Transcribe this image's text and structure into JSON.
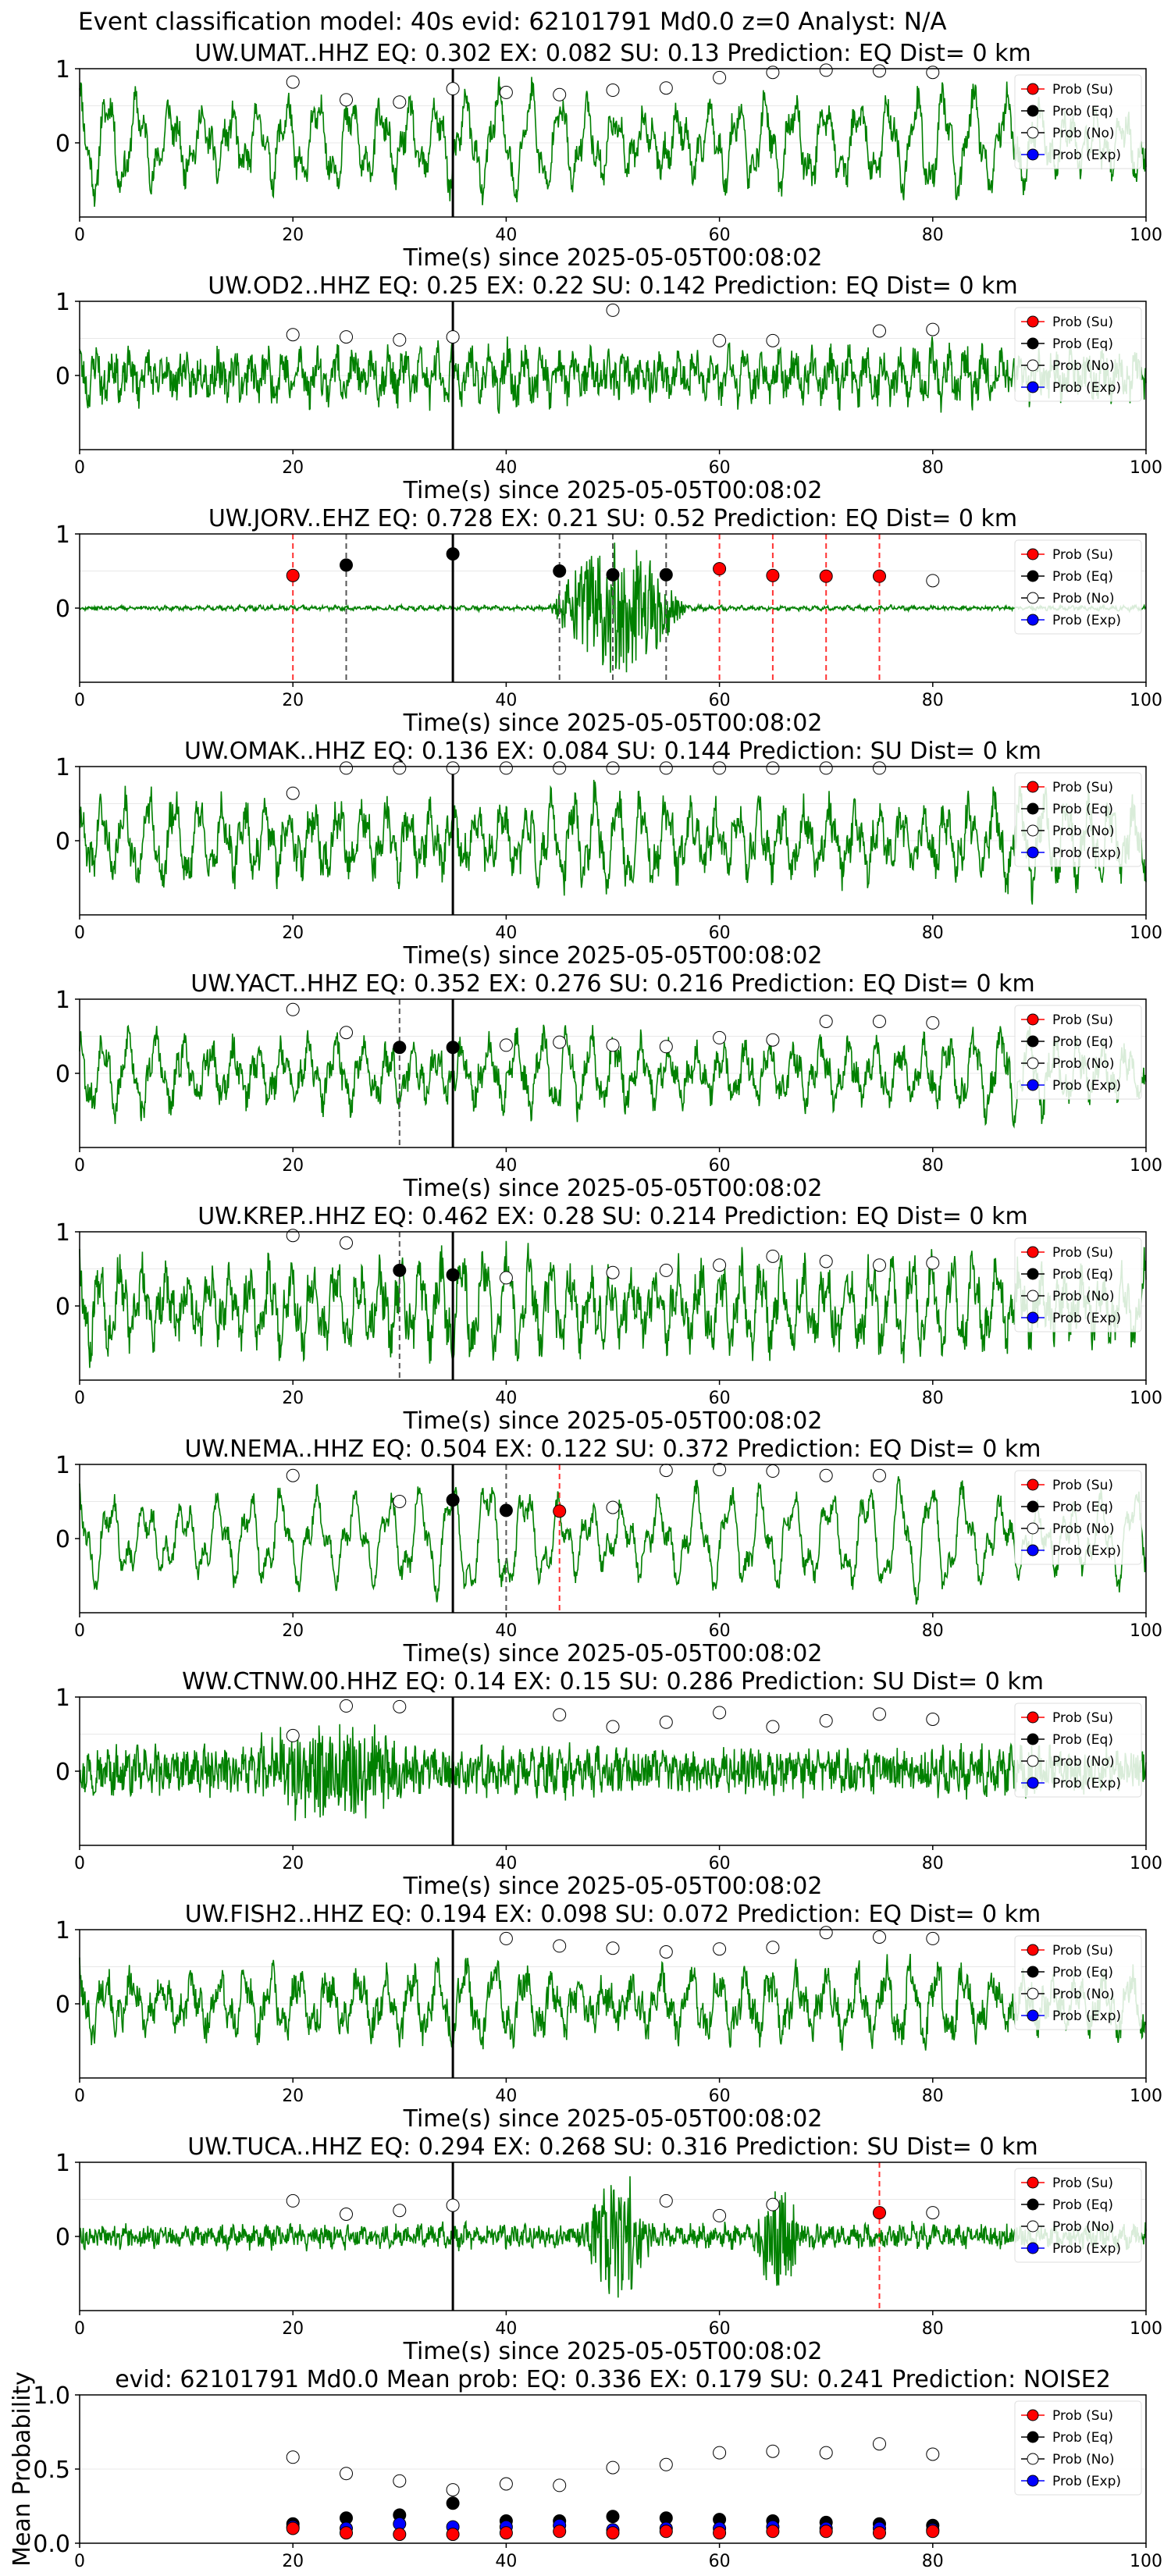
{
  "suptitle": "Event classification model: 40s evid: 62101791 Md0.0 z=0 Analyst: N/A",
  "legend": [
    "Prob (Su)",
    "Prob (Eq)",
    "Prob (No)",
    "Prob (Exp)"
  ],
  "colors": {
    "su": "#ff0000",
    "eq": "#000000",
    "no": "#ffffff",
    "exp": "#0000ff",
    "wave": "#008000",
    "vline_eq": "#555555",
    "vline_su": "#ff3333"
  },
  "chart_data": [
    {
      "type": "line",
      "title": "UW.UMAT..HHZ   EQ: 0.302  EX: 0.082  SU: 0.13   Prediction: EQ    Dist= 0 km",
      "xlabel": "Time(s) since 2025-05-05T00:08:02",
      "xlim": [
        0,
        100
      ],
      "ylim": [
        -1,
        1
      ],
      "xticks": [
        "0",
        "20",
        "40",
        "60",
        "80",
        "100"
      ],
      "yticks": [
        "0",
        "1"
      ],
      "wave": {
        "amp": 0.55,
        "period": 2.8,
        "noise": 0.18,
        "seed": 11
      },
      "pick_time": 35,
      "points": [
        {
          "t": 20,
          "p": 0.82,
          "cls": "no"
        },
        {
          "t": 25,
          "p": 0.58,
          "cls": "no"
        },
        {
          "t": 30,
          "p": 0.55,
          "cls": "no"
        },
        {
          "t": 35,
          "p": 0.73,
          "cls": "no"
        },
        {
          "t": 40,
          "p": 0.68,
          "cls": "no"
        },
        {
          "t": 45,
          "p": 0.65,
          "cls": "no"
        },
        {
          "t": 50,
          "p": 0.71,
          "cls": "no"
        },
        {
          "t": 55,
          "p": 0.74,
          "cls": "no"
        },
        {
          "t": 60,
          "p": 0.88,
          "cls": "no"
        },
        {
          "t": 65,
          "p": 0.95,
          "cls": "no"
        },
        {
          "t": 70,
          "p": 0.98,
          "cls": "no"
        },
        {
          "t": 75,
          "p": 0.97,
          "cls": "no"
        },
        {
          "t": 80,
          "p": 0.95,
          "cls": "no"
        }
      ],
      "vlines": []
    },
    {
      "type": "line",
      "title": "UW.OD2..HHZ   EQ: 0.25  EX: 0.22  SU: 0.142   Prediction: EQ    Dist= 0 km",
      "xlabel": "Time(s) since 2025-05-05T00:08:02",
      "xlim": [
        0,
        100
      ],
      "ylim": [
        -1,
        1
      ],
      "xticks": [
        "0",
        "20",
        "40",
        "60",
        "80",
        "100"
      ],
      "yticks": [
        "0",
        "1"
      ],
      "wave": {
        "amp": 0.25,
        "period": 1.6,
        "noise": 0.22,
        "seed": 23
      },
      "pick_time": 35,
      "points": [
        {
          "t": 20,
          "p": 0.55,
          "cls": "no"
        },
        {
          "t": 25,
          "p": 0.52,
          "cls": "no"
        },
        {
          "t": 30,
          "p": 0.48,
          "cls": "no"
        },
        {
          "t": 35,
          "p": 0.52,
          "cls": "no"
        },
        {
          "t": 50,
          "p": 0.88,
          "cls": "no"
        },
        {
          "t": 60,
          "p": 0.47,
          "cls": "no"
        },
        {
          "t": 65,
          "p": 0.47,
          "cls": "no"
        },
        {
          "t": 75,
          "p": 0.6,
          "cls": "no"
        },
        {
          "t": 80,
          "p": 0.62,
          "cls": "no"
        }
      ],
      "vlines": []
    },
    {
      "type": "line",
      "title": "UW.JORV..EHZ   EQ: 0.728  EX: 0.21  SU: 0.52   Prediction: EQ    Dist= 0 km",
      "xlabel": "Time(s) since 2025-05-05T00:08:02",
      "xlim": [
        0,
        100
      ],
      "ylim": [
        -1,
        1
      ],
      "xticks": [
        "0",
        "20",
        "40",
        "60",
        "80",
        "100"
      ],
      "yticks": [
        "0",
        "1"
      ],
      "wave": {
        "amp": 0.02,
        "period": 1.0,
        "noise": 0.02,
        "seed": 37,
        "burst": [
          44,
          57,
          0.9
        ]
      },
      "pick_time": 35,
      "points": [
        {
          "t": 20,
          "p": 0.44,
          "cls": "su"
        },
        {
          "t": 25,
          "p": 0.58,
          "cls": "eq"
        },
        {
          "t": 35,
          "p": 0.73,
          "cls": "eq"
        },
        {
          "t": 45,
          "p": 0.5,
          "cls": "eq"
        },
        {
          "t": 50,
          "p": 0.45,
          "cls": "eq"
        },
        {
          "t": 55,
          "p": 0.45,
          "cls": "eq"
        },
        {
          "t": 60,
          "p": 0.53,
          "cls": "su"
        },
        {
          "t": 65,
          "p": 0.44,
          "cls": "su"
        },
        {
          "t": 70,
          "p": 0.43,
          "cls": "su"
        },
        {
          "t": 75,
          "p": 0.43,
          "cls": "su"
        },
        {
          "t": 80,
          "p": 0.37,
          "cls": "no"
        }
      ],
      "vlines": [
        {
          "t": 20,
          "cls": "su"
        },
        {
          "t": 25,
          "cls": "eq"
        },
        {
          "t": 45,
          "cls": "eq"
        },
        {
          "t": 50,
          "cls": "eq"
        },
        {
          "t": 55,
          "cls": "eq"
        },
        {
          "t": 60,
          "cls": "su"
        },
        {
          "t": 65,
          "cls": "su"
        },
        {
          "t": 70,
          "cls": "su"
        },
        {
          "t": 75,
          "cls": "su"
        }
      ]
    },
    {
      "type": "line",
      "title": "UW.OMAK..HHZ   EQ: 0.136  EX: 0.084  SU: 0.144   Prediction: SU    Dist= 0 km",
      "xlabel": "Time(s) since 2025-05-05T00:08:02",
      "xlim": [
        0,
        100
      ],
      "ylim": [
        -1,
        1
      ],
      "xticks": [
        "0",
        "20",
        "40",
        "60",
        "80",
        "100"
      ],
      "yticks": [
        "0",
        "1"
      ],
      "wave": {
        "amp": 0.45,
        "period": 2.2,
        "noise": 0.22,
        "seed": 41
      },
      "pick_time": 35,
      "points": [
        {
          "t": 20,
          "p": 0.64,
          "cls": "no"
        },
        {
          "t": 25,
          "p": 0.98,
          "cls": "no"
        },
        {
          "t": 30,
          "p": 0.98,
          "cls": "no"
        },
        {
          "t": 35,
          "p": 0.98,
          "cls": "no"
        },
        {
          "t": 40,
          "p": 0.98,
          "cls": "no"
        },
        {
          "t": 45,
          "p": 0.98,
          "cls": "no"
        },
        {
          "t": 50,
          "p": 0.98,
          "cls": "no"
        },
        {
          "t": 55,
          "p": 0.98,
          "cls": "no"
        },
        {
          "t": 60,
          "p": 0.98,
          "cls": "no"
        },
        {
          "t": 65,
          "p": 0.98,
          "cls": "no"
        },
        {
          "t": 70,
          "p": 0.98,
          "cls": "no"
        },
        {
          "t": 75,
          "p": 0.98,
          "cls": "no"
        }
      ],
      "vlines": []
    },
    {
      "type": "line",
      "title": "UW.YACT..HHZ   EQ: 0.352  EX: 0.276  SU: 0.216   Prediction: EQ    Dist= 0 km",
      "xlabel": "Time(s) since 2025-05-05T00:08:02",
      "xlim": [
        0,
        100
      ],
      "ylim": [
        -1,
        1
      ],
      "xticks": [
        "0",
        "20",
        "40",
        "60",
        "80",
        "100"
      ],
      "yticks": [
        "0",
        "1"
      ],
      "wave": {
        "amp": 0.4,
        "period": 2.4,
        "noise": 0.18,
        "seed": 53
      },
      "pick_time": 35,
      "points": [
        {
          "t": 20,
          "p": 0.86,
          "cls": "no"
        },
        {
          "t": 25,
          "p": 0.55,
          "cls": "no"
        },
        {
          "t": 30,
          "p": 0.35,
          "cls": "eq"
        },
        {
          "t": 35,
          "p": 0.35,
          "cls": "eq"
        },
        {
          "t": 40,
          "p": 0.38,
          "cls": "no"
        },
        {
          "t": 45,
          "p": 0.42,
          "cls": "no"
        },
        {
          "t": 50,
          "p": 0.38,
          "cls": "no"
        },
        {
          "t": 55,
          "p": 0.36,
          "cls": "no"
        },
        {
          "t": 60,
          "p": 0.48,
          "cls": "no"
        },
        {
          "t": 65,
          "p": 0.45,
          "cls": "no"
        },
        {
          "t": 70,
          "p": 0.7,
          "cls": "no"
        },
        {
          "t": 75,
          "p": 0.7,
          "cls": "no"
        },
        {
          "t": 80,
          "p": 0.68,
          "cls": "no"
        }
      ],
      "vlines": [
        {
          "t": 30,
          "cls": "eq"
        }
      ]
    },
    {
      "type": "line",
      "title": "UW.KREP..HHZ   EQ: 0.462  EX: 0.28  SU: 0.214   Prediction: EQ    Dist= 0 km",
      "xlabel": "Time(s) since 2025-05-05T00:08:02",
      "xlim": [
        0,
        100
      ],
      "ylim": [
        -1,
        1
      ],
      "xticks": [
        "0",
        "20",
        "40",
        "60",
        "80",
        "100"
      ],
      "yticks": [
        "0",
        "1"
      ],
      "wave": {
        "amp": 0.5,
        "period": 2.0,
        "noise": 0.25,
        "seed": 67
      },
      "pick_time": 35,
      "points": [
        {
          "t": 20,
          "p": 0.95,
          "cls": "no"
        },
        {
          "t": 25,
          "p": 0.85,
          "cls": "no"
        },
        {
          "t": 30,
          "p": 0.48,
          "cls": "eq"
        },
        {
          "t": 35,
          "p": 0.42,
          "cls": "eq"
        },
        {
          "t": 40,
          "p": 0.38,
          "cls": "no"
        },
        {
          "t": 50,
          "p": 0.45,
          "cls": "no"
        },
        {
          "t": 55,
          "p": 0.48,
          "cls": "no"
        },
        {
          "t": 60,
          "p": 0.55,
          "cls": "no"
        },
        {
          "t": 65,
          "p": 0.67,
          "cls": "no"
        },
        {
          "t": 70,
          "p": 0.6,
          "cls": "no"
        },
        {
          "t": 75,
          "p": 0.55,
          "cls": "no"
        },
        {
          "t": 80,
          "p": 0.58,
          "cls": "no"
        }
      ],
      "vlines": [
        {
          "t": 30,
          "cls": "eq"
        }
      ]
    },
    {
      "type": "line",
      "title": "UW.NEMA..HHZ   EQ: 0.504  EX: 0.122  SU: 0.372   Prediction: EQ    Dist= 0 km",
      "xlabel": "Time(s) since 2025-05-05T00:08:02",
      "xlim": [
        0,
        100
      ],
      "ylim": [
        -1,
        1
      ],
      "xticks": [
        "0",
        "20",
        "40",
        "60",
        "80",
        "100"
      ],
      "yticks": [
        "0",
        "1"
      ],
      "wave": {
        "amp": 0.6,
        "period": 3.2,
        "noise": 0.12,
        "seed": 79
      },
      "pick_time": 35,
      "points": [
        {
          "t": 20,
          "p": 0.85,
          "cls": "no"
        },
        {
          "t": 30,
          "p": 0.5,
          "cls": "no"
        },
        {
          "t": 35,
          "p": 0.52,
          "cls": "eq"
        },
        {
          "t": 40,
          "p": 0.38,
          "cls": "eq"
        },
        {
          "t": 45,
          "p": 0.37,
          "cls": "su"
        },
        {
          "t": 50,
          "p": 0.42,
          "cls": "no"
        },
        {
          "t": 55,
          "p": 0.92,
          "cls": "no"
        },
        {
          "t": 60,
          "p": 0.93,
          "cls": "no"
        },
        {
          "t": 65,
          "p": 0.91,
          "cls": "no"
        },
        {
          "t": 70,
          "p": 0.85,
          "cls": "no"
        },
        {
          "t": 75,
          "p": 0.85,
          "cls": "no"
        }
      ],
      "vlines": [
        {
          "t": 40,
          "cls": "eq"
        },
        {
          "t": 45,
          "cls": "su"
        }
      ]
    },
    {
      "type": "line",
      "title": "WW.CTNW.00.HHZ   EQ: 0.14  EX: 0.15  SU: 0.286   Prediction: SU    Dist= 0 km",
      "xlabel": "Time(s) since 2025-05-05T00:08:02",
      "xlim": [
        0,
        100
      ],
      "ylim": [
        -1,
        1
      ],
      "xticks": [
        "0",
        "20",
        "40",
        "60",
        "80",
        "100"
      ],
      "yticks": [
        "0",
        "1"
      ],
      "wave": {
        "amp": 0.12,
        "period": 0.9,
        "noise": 0.25,
        "seed": 97,
        "burst": [
          15,
          33,
          0.55
        ]
      },
      "pick_time": 35,
      "points": [
        {
          "t": 20,
          "p": 0.48,
          "cls": "no"
        },
        {
          "t": 25,
          "p": 0.88,
          "cls": "no"
        },
        {
          "t": 30,
          "p": 0.87,
          "cls": "no"
        },
        {
          "t": 45,
          "p": 0.76,
          "cls": "no"
        },
        {
          "t": 50,
          "p": 0.6,
          "cls": "no"
        },
        {
          "t": 55,
          "p": 0.66,
          "cls": "no"
        },
        {
          "t": 60,
          "p": 0.79,
          "cls": "no"
        },
        {
          "t": 65,
          "p": 0.6,
          "cls": "no"
        },
        {
          "t": 70,
          "p": 0.68,
          "cls": "no"
        },
        {
          "t": 75,
          "p": 0.77,
          "cls": "no"
        },
        {
          "t": 80,
          "p": 0.7,
          "cls": "no"
        }
      ],
      "vlines": []
    },
    {
      "type": "line",
      "title": "UW.FISH2..HHZ   EQ: 0.194  EX: 0.098  SU: 0.072   Prediction: EQ    Dist= 0 km",
      "xlabel": "Time(s) since 2025-05-05T00:08:02",
      "xlim": [
        0,
        100
      ],
      "ylim": [
        -1,
        1
      ],
      "xticks": [
        "0",
        "20",
        "40",
        "60",
        "80",
        "100"
      ],
      "yticks": [
        "0",
        "1"
      ],
      "wave": {
        "amp": 0.4,
        "period": 2.6,
        "noise": 0.2,
        "seed": 101
      },
      "pick_time": 35,
      "points": [
        {
          "t": 40,
          "p": 0.88,
          "cls": "no"
        },
        {
          "t": 45,
          "p": 0.78,
          "cls": "no"
        },
        {
          "t": 50,
          "p": 0.75,
          "cls": "no"
        },
        {
          "t": 55,
          "p": 0.7,
          "cls": "no"
        },
        {
          "t": 60,
          "p": 0.74,
          "cls": "no"
        },
        {
          "t": 65,
          "p": 0.76,
          "cls": "no"
        },
        {
          "t": 70,
          "p": 0.96,
          "cls": "no"
        },
        {
          "t": 75,
          "p": 0.9,
          "cls": "no"
        },
        {
          "t": 80,
          "p": 0.88,
          "cls": "no"
        }
      ],
      "vlines": []
    },
    {
      "type": "line",
      "title": "UW.TUCA..HHZ   EQ: 0.294  EX: 0.268  SU: 0.316   Prediction: SU    Dist= 0 km",
      "xlabel": "Time(s) since 2025-05-05T00:08:02",
      "xlim": [
        0,
        100
      ],
      "ylim": [
        -1,
        1
      ],
      "xticks": [
        "0",
        "20",
        "40",
        "60",
        "80",
        "100"
      ],
      "yticks": [
        "0",
        "1"
      ],
      "wave": {
        "amp": 0.08,
        "period": 1.1,
        "noise": 0.12,
        "seed": 113,
        "burst": [
          47,
          54,
          0.8
        ],
        "burst2": [
          63,
          68,
          0.7
        ]
      },
      "pick_time": 35,
      "points": [
        {
          "t": 20,
          "p": 0.48,
          "cls": "no"
        },
        {
          "t": 25,
          "p": 0.3,
          "cls": "no"
        },
        {
          "t": 30,
          "p": 0.35,
          "cls": "no"
        },
        {
          "t": 35,
          "p": 0.42,
          "cls": "no"
        },
        {
          "t": 55,
          "p": 0.48,
          "cls": "no"
        },
        {
          "t": 60,
          "p": 0.28,
          "cls": "no"
        },
        {
          "t": 65,
          "p": 0.43,
          "cls": "no"
        },
        {
          "t": 75,
          "p": 0.32,
          "cls": "su"
        },
        {
          "t": 80,
          "p": 0.32,
          "cls": "no"
        }
      ],
      "vlines": [
        {
          "t": 75,
          "cls": "su"
        }
      ]
    },
    {
      "type": "scatter",
      "title": "evid: 62101791   Md0.0   Mean prob:   EQ: 0.336  EX: 0.179  SU: 0.241   Prediction: NOISE2",
      "ylabel": "Mean Probability",
      "xlim": [
        0,
        100
      ],
      "ylim": [
        0,
        1
      ],
      "xticks": [
        "0",
        "20",
        "40",
        "60",
        "80",
        "100"
      ],
      "yticks": [
        "0.0",
        "0.5",
        "1.0"
      ],
      "x": [
        20,
        25,
        30,
        35,
        40,
        45,
        50,
        55,
        60,
        65,
        70,
        75,
        80
      ],
      "series": [
        {
          "name": "Prob (No)",
          "cls": "no",
          "values": [
            0.58,
            0.47,
            0.42,
            0.36,
            0.4,
            0.39,
            0.51,
            0.53,
            0.61,
            0.62,
            0.61,
            0.67,
            0.6
          ]
        },
        {
          "name": "Prob (Eq)",
          "cls": "eq",
          "values": [
            0.13,
            0.17,
            0.19,
            0.27,
            0.15,
            0.15,
            0.18,
            0.17,
            0.16,
            0.15,
            0.14,
            0.13,
            0.12
          ]
        },
        {
          "name": "Prob (Exp)",
          "cls": "exp",
          "values": [
            0.11,
            0.1,
            0.13,
            0.11,
            0.11,
            0.12,
            0.09,
            0.1,
            0.1,
            0.11,
            0.1,
            0.1,
            0.09
          ]
        },
        {
          "name": "Prob (Su)",
          "cls": "su",
          "values": [
            0.1,
            0.07,
            0.06,
            0.06,
            0.07,
            0.08,
            0.07,
            0.08,
            0.07,
            0.08,
            0.08,
            0.07,
            0.08
          ]
        }
      ]
    }
  ]
}
